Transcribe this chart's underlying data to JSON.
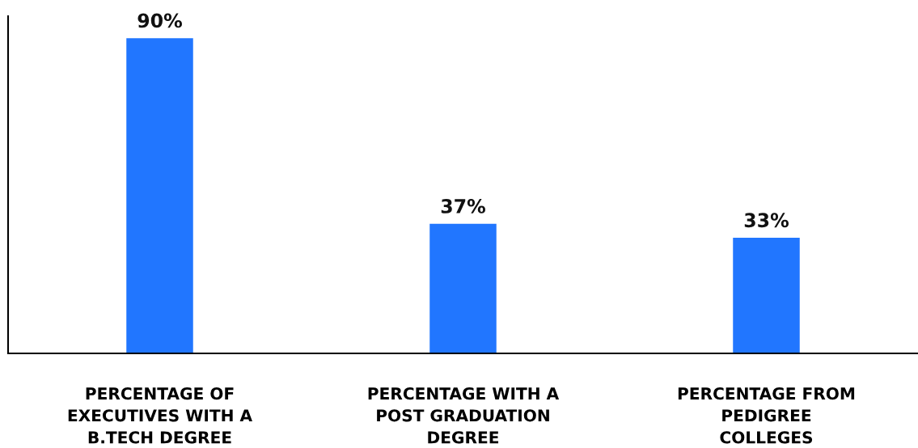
{
  "chart_data": {
    "type": "bar",
    "categories": [
      "PERCENTAGE OF\nEXECUTIVES WITH A\nB.TECH DEGREE",
      "PERCENTAGE WITH A\nPOST GRADUATION\nDEGREE",
      "PERCENTAGE FROM\nPEDIGREE\nCOLLEGES"
    ],
    "values": [
      90,
      37,
      33
    ],
    "value_labels": [
      "90%",
      "37%",
      "33%"
    ],
    "color": "#2176ff",
    "grid": false
  }
}
